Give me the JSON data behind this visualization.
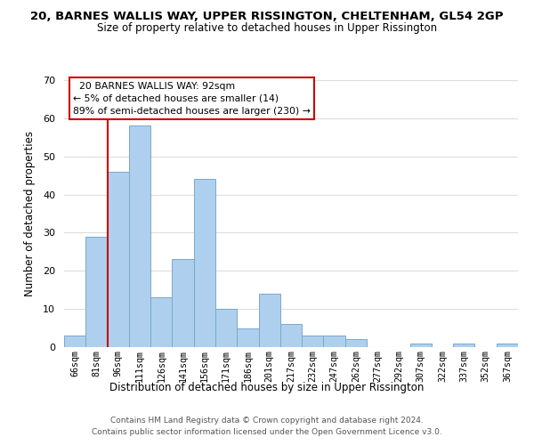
{
  "title": "20, BARNES WALLIS WAY, UPPER RISSINGTON, CHELTENHAM, GL54 2GP",
  "subtitle": "Size of property relative to detached houses in Upper Rissington",
  "xlabel": "Distribution of detached houses by size in Upper Rissington",
  "ylabel": "Number of detached properties",
  "bar_labels": [
    "66sqm",
    "81sqm",
    "96sqm",
    "111sqm",
    "126sqm",
    "141sqm",
    "156sqm",
    "171sqm",
    "186sqm",
    "201sqm",
    "217sqm",
    "232sqm",
    "247sqm",
    "262sqm",
    "277sqm",
    "292sqm",
    "307sqm",
    "322sqm",
    "337sqm",
    "352sqm",
    "367sqm"
  ],
  "bar_values": [
    3,
    29,
    46,
    58,
    13,
    23,
    44,
    10,
    5,
    14,
    6,
    3,
    3,
    2,
    0,
    0,
    1,
    0,
    1,
    0,
    1
  ],
  "bar_color": "#aed0ee",
  "bar_edge_color": "#7aa8cc",
  "vline_color": "#cc0000",
  "vline_x_index": 2,
  "annotation_title": "20 BARNES WALLIS WAY: 92sqm",
  "annotation_line1": "← 5% of detached houses are smaller (14)",
  "annotation_line2": "89% of semi-detached houses are larger (230) →",
  "annotation_box_color": "#ffffff",
  "annotation_box_edge": "#cc0000",
  "ylim": [
    0,
    70
  ],
  "yticks": [
    0,
    10,
    20,
    30,
    40,
    50,
    60,
    70
  ],
  "footer1": "Contains HM Land Registry data © Crown copyright and database right 2024.",
  "footer2": "Contains public sector information licensed under the Open Government Licence v3.0.",
  "bg_color": "#ffffff",
  "grid_color": "#dddddd"
}
